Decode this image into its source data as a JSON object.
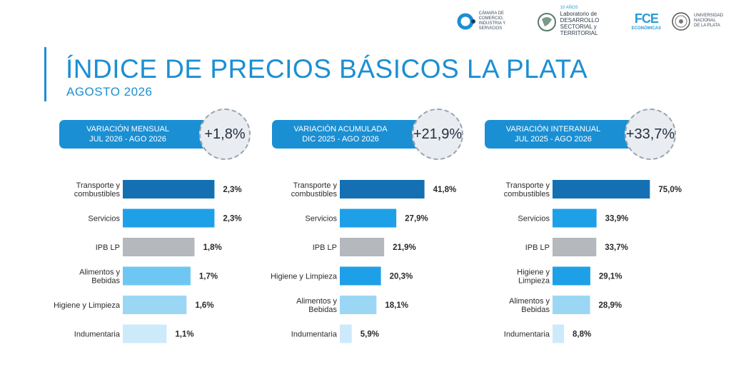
{
  "header": {
    "title": "ÍNDICE DE PRECIOS BÁSICOS LA PLATA",
    "subtitle": "AGOSTO 2026",
    "logos": {
      "camara": "CÁMARA DE COMERCIO, INDUSTRIA Y SERVICIOS",
      "lab_badge": "10 AÑOS",
      "lab": "Laboratorio de DESARROLLO SECTORIAL y TERRITORIAL",
      "fce": "FCE",
      "fce_sub": "ECONÓMICAS",
      "unlp": "UNIVERSIDAD NACIONAL DE LA PLATA"
    }
  },
  "colors": {
    "accent": "#1b8fd3",
    "transporte": "#1570b3",
    "servicios": "#1ea0e8",
    "ipb": "#b5b8bc",
    "alimentos": "#6ec7f3",
    "higiene": "#9bd7f5",
    "indumentaria": "#cdeafb"
  },
  "chart_data": [
    {
      "type": "bar",
      "banner_line1": "VARIACIÓN MENSUAL",
      "banner_line2": "JUL 2026 - AGO 2026",
      "headline": "+1,8%",
      "categories": [
        "Transporte y combustibles",
        "Servicios",
        "IPB LP",
        "Alimentos y Bebidas",
        "Higiene y Limpieza",
        "Indumentaria"
      ],
      "values": [
        2.3,
        2.3,
        1.8,
        1.7,
        1.6,
        1.1
      ],
      "labels": [
        "2,3%",
        "2,3%",
        "1,8%",
        "1,7%",
        "1,6%",
        "1,1%"
      ],
      "color_keys": [
        "transporte",
        "servicios",
        "ipb",
        "alimentos",
        "higiene",
        "indumentaria"
      ],
      "xlim": [
        0,
        2.4
      ]
    },
    {
      "type": "bar",
      "banner_line1": "VARIACIÓN ACUMULADA",
      "banner_line2": "DIC 2025 - AGO 2026",
      "headline": "+21,9%",
      "categories": [
        "Transporte y combustibles",
        "Servicios",
        "IPB LP",
        "Higiene y Limpieza",
        "Alimentos y Bebidas",
        "Indumentaria"
      ],
      "values": [
        41.8,
        27.9,
        21.9,
        20.3,
        18.1,
        5.9
      ],
      "labels": [
        "41,8%",
        "27,9%",
        "21,9%",
        "20,3%",
        "18,1%",
        "5,9%"
      ],
      "color_keys": [
        "transporte",
        "servicios",
        "ipb",
        "servicios",
        "higiene",
        "indumentaria"
      ],
      "xlim": [
        0,
        43
      ]
    },
    {
      "type": "bar",
      "banner_line1": "VARIACIÓN INTERANUAL",
      "banner_line2": "JUL 2025 - AGO 2026",
      "headline": "+33,7%",
      "categories": [
        "Transporte y combustibles",
        "Servicios",
        "IPB LP",
        "Higiene y Limpieza",
        "Alimentos y Bebidas",
        "Indumentaria"
      ],
      "values": [
        75.0,
        33.9,
        33.7,
        29.1,
        28.9,
        8.8
      ],
      "labels": [
        "75,0%",
        "33,9%",
        "33,7%",
        "29,1%",
        "28,9%",
        "8,8%"
      ],
      "color_keys": [
        "transporte",
        "servicios",
        "ipb",
        "servicios",
        "higiene",
        "indumentaria"
      ],
      "xlim": [
        0,
        77
      ]
    }
  ]
}
